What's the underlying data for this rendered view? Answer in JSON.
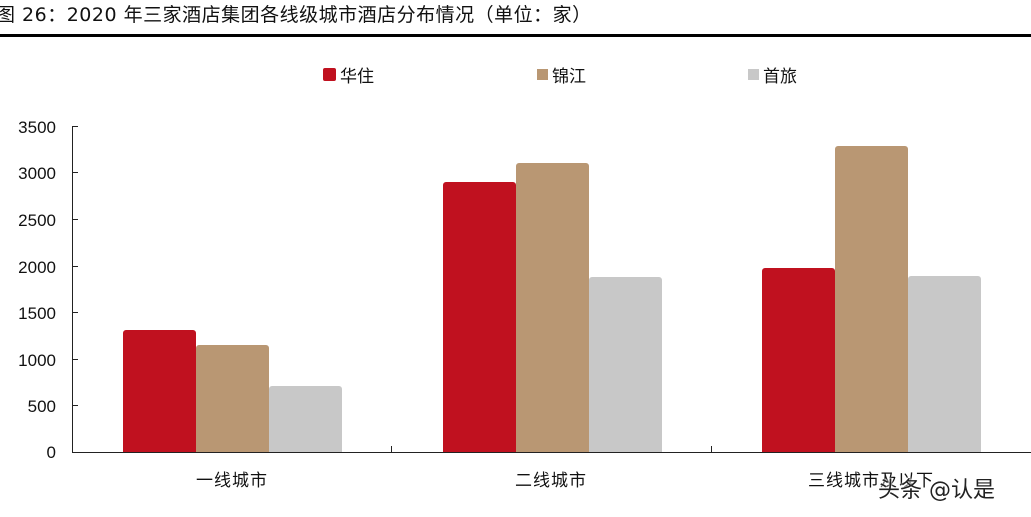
{
  "title": "图 26：2020 年三家酒店集团各线级城市酒店分布情况（单位：家）",
  "legend": [
    {
      "label": "华住",
      "color": "#C0111F"
    },
    {
      "label": "锦江",
      "color": "#B99773"
    },
    {
      "label": "首旅",
      "color": "#C8C8C8"
    }
  ],
  "y_ticks": [
    "3500",
    "3000",
    "2500",
    "2000",
    "1500",
    "1000",
    "500",
    "0"
  ],
  "watermark": "头条 @认是",
  "chart_data": {
    "type": "bar",
    "title": "图 26：2020 年三家酒店集团各线级城市酒店分布情况（单位：家）",
    "xlabel": "",
    "ylabel": "",
    "categories": [
      "一线城市",
      "二线城市",
      "三线城市及以下"
    ],
    "series": [
      {
        "name": "华住",
        "color": "#C0111F",
        "values": [
          1310,
          2900,
          1980
        ]
      },
      {
        "name": "锦江",
        "color": "#B99773",
        "values": [
          1150,
          3100,
          3280
        ]
      },
      {
        "name": "首旅",
        "color": "#C8C8C8",
        "values": [
          710,
          1880,
          1890
        ]
      }
    ],
    "ylim": [
      0,
      3500
    ],
    "yticks": [
      0,
      500,
      1000,
      1500,
      2000,
      2500,
      3000,
      3500
    ],
    "grid": false,
    "legend_position": "top"
  }
}
